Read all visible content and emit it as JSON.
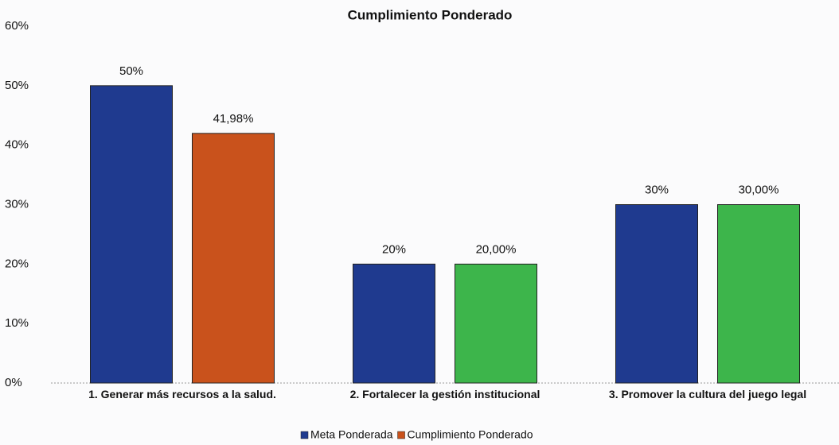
{
  "chart_data": {
    "type": "bar",
    "title": "Cumplimiento  Ponderado",
    "categories": [
      "1. Generar más recursos a la salud.",
      "2. Fortalecer la gestión institucional",
      "3. Promover la cultura del juego legal"
    ],
    "series": [
      {
        "name": "Meta Ponderada",
        "color": "#1f3a8f",
        "values": [
          50,
          20,
          30
        ],
        "value_labels": [
          "50%",
          "20%",
          "30%"
        ]
      },
      {
        "name": "Cumplimiento Ponderado",
        "color": "#c9521c",
        "colors": [
          "#c9521c",
          "#3db54b",
          "#3db54b"
        ],
        "values": [
          41.98,
          20,
          30
        ],
        "value_labels": [
          "41,98%",
          "20,00%",
          "30,00%"
        ]
      }
    ],
    "ylim": [
      0,
      60
    ],
    "yticks": [
      {
        "value": 0,
        "label": "0%"
      },
      {
        "value": 10,
        "label": "10%"
      },
      {
        "value": 20,
        "label": "20%"
      },
      {
        "value": 30,
        "label": "30%"
      },
      {
        "value": 40,
        "label": "40%"
      },
      {
        "value": 50,
        "label": "50%"
      },
      {
        "value": 60,
        "label": "60%"
      }
    ],
    "grid": false,
    "legend": "bottom"
  }
}
